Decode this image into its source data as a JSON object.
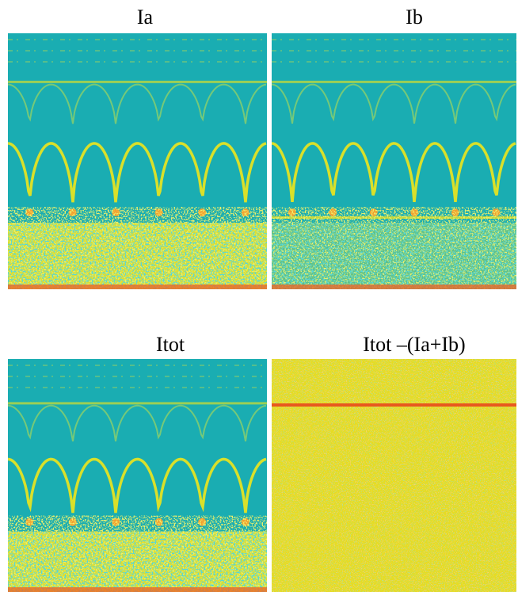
{
  "panels": [
    {
      "title": "Ia"
    },
    {
      "title": "Ib"
    },
    {
      "title": "Itot"
    },
    {
      "title": "Itot –(Ia+Ib)"
    }
  ]
}
